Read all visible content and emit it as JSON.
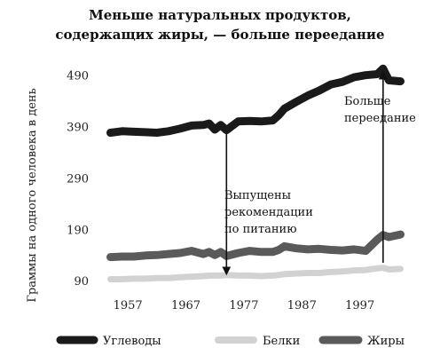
{
  "chart_data": {
    "type": "line",
    "title_line1": "Меньше натуральных продуктов,",
    "title_line2": "содержащих жиры, — больше переедание",
    "ylabel": "Граммы на одного человека в день",
    "xlabel": "",
    "xlim": [
      1953,
      2005
    ],
    "ylim": [
      80,
      505
    ],
    "x_ticks": [
      1957,
      1967,
      1977,
      1987,
      1997
    ],
    "y_ticks": [
      90,
      190,
      290,
      390,
      490
    ],
    "x": [
      1954,
      1956,
      1958,
      1960,
      1962,
      1964,
      1966,
      1968,
      1970,
      1971,
      1972,
      1973,
      1974,
      1976,
      1978,
      1980,
      1982,
      1983,
      1984,
      1986,
      1988,
      1990,
      1992,
      1994,
      1996,
      1998,
      2000,
      2001,
      2002,
      2004
    ],
    "series": [
      {
        "name": "Углеводы",
        "color": "#1a1a1a",
        "stroke": 9,
        "values": [
          378,
          381,
          380,
          379,
          378,
          381,
          386,
          392,
          393,
          396,
          384,
          393,
          383,
          400,
          401,
          400,
          402,
          412,
          425,
          438,
          450,
          460,
          472,
          477,
          486,
          490,
          492,
          503,
          480,
          478
        ]
      },
      {
        "name": "Белки",
        "color": "#d2d2d2",
        "stroke": 7,
        "values": [
          93,
          93,
          94,
          94,
          95,
          95,
          97,
          98,
          99,
          100,
          100,
          100,
          101,
          100,
          100,
          99,
          100,
          101,
          103,
          104,
          105,
          105,
          107,
          108,
          110,
          111,
          114,
          115,
          112,
          113
        ]
      },
      {
        "name": "Жиры",
        "color": "#5a5a5a",
        "stroke": 9,
        "values": [
          136,
          137,
          137,
          139,
          140,
          142,
          144,
          148,
          142,
          146,
          140,
          146,
          138,
          144,
          148,
          146,
          146,
          150,
          157,
          153,
          151,
          152,
          150,
          149,
          151,
          148,
          170,
          179,
          175,
          180
        ]
      }
    ],
    "annotations": [
      {
        "lines": [
          "Выпущены",
          "рекомендации",
          "по питанию"
        ],
        "x": 1974
      },
      {
        "lines": [
          "Больше",
          "переедание"
        ],
        "x": 2001
      }
    ],
    "grid": false,
    "legend_placement": "bottom"
  }
}
